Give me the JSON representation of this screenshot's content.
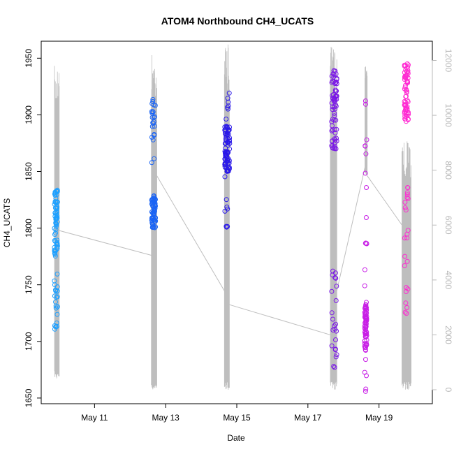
{
  "chart_data": {
    "type": "scatter",
    "title": "ATOM4 Northbound CH4_UCATS",
    "xlabel": "Date",
    "ylabel": "CH4_UCATS",
    "xlim": [
      "2018-05-09T12:00",
      "2018-05-20T12:00"
    ],
    "ylim": [
      1645,
      1965
    ],
    "y_ticks": [
      1650,
      1700,
      1750,
      1800,
      1850,
      1900,
      1950
    ],
    "x_ticks": [
      {
        "value": "2018-05-11",
        "label": "May 11"
      },
      {
        "value": "2018-05-13",
        "label": "May 13"
      },
      {
        "value": "2018-05-15",
        "label": "May 15"
      },
      {
        "value": "2018-05-17",
        "label": "May 17"
      },
      {
        "value": "2018-05-19",
        "label": "May 19"
      }
    ],
    "y2lim": [
      0,
      12700
    ],
    "y2_ticks": [
      0,
      2000,
      4000,
      6000,
      8000,
      10000,
      12000
    ],
    "grid": false,
    "legend": "none",
    "colors": {
      "altitude_line": "#bebebe",
      "point_gradient": [
        "#1ea0ff",
        "#0a3cf0",
        "#6a1ae8",
        "#c81ee6",
        "#ff3cc8"
      ],
      "axis": "#000000",
      "right_axis": "#b8b8b8"
    },
    "point_groups": [
      {
        "t_center": "2018-05-09T22:00",
        "t_spread_hours": 2.2,
        "color": "#1ea0ff",
        "core": [
          1775,
          1835
        ],
        "tail": [
          1710,
          1760
        ]
      },
      {
        "t_center": "2018-05-12T15:50",
        "t_spread_hours": 2.6,
        "color": "#1a64f5",
        "core": [
          1800,
          1830
        ],
        "tail": [
          1850,
          1920
        ]
      },
      {
        "t_center": "2018-05-14T17:30",
        "t_spread_hours": 3.4,
        "color": "#2a18e8",
        "core": [
          1850,
          1890
        ],
        "tail": [
          1800,
          1925
        ]
      },
      {
        "t_center": "2018-05-17T17:50",
        "t_spread_hours": 3.6,
        "color": "#7a18e6",
        "core": [
          1870,
          1940
        ],
        "tail": [
          1675,
          1775
        ]
      },
      {
        "t_center": "2018-05-18T15:00",
        "t_spread_hours": 1.4,
        "color": "#c81ee6",
        "core": [
          1690,
          1735
        ],
        "tail": [
          1655,
          1920
        ]
      },
      {
        "t_center": "2018-05-19T18:30",
        "t_spread_hours": 2.6,
        "color": "#ff2ad2",
        "core": [
          1890,
          1945
        ],
        "tail": [
          1720,
          1840
        ]
      }
    ],
    "altitude_series": {
      "name": "altitude",
      "segments": [
        {
          "t": [
            "2018-05-09T21:00",
            "2018-05-10T00:10"
          ],
          "max": 11800,
          "min": 400
        },
        {
          "t": [
            "2018-05-12T14:20",
            "2018-05-12T18:00"
          ],
          "max": 12300,
          "min": 0
        },
        {
          "t": [
            "2018-05-14T15:40",
            "2018-05-14T19:00"
          ],
          "max": 12600,
          "min": 0
        },
        {
          "t": [
            "2018-05-17T15:10",
            "2018-05-17T19:30"
          ],
          "max": 12500,
          "min": 0
        },
        {
          "t": [
            "2018-05-18T14:30",
            "2018-05-18T16:00"
          ],
          "max": 11900,
          "min": 7800
        },
        {
          "t": [
            "2018-05-19T15:30",
            "2018-05-19T21:40"
          ],
          "max": 9100,
          "min": 0
        }
      ],
      "transits": [
        {
          "from": [
            "2018-05-10T00:10",
            5800
          ],
          "to": [
            "2018-05-12T14:20",
            4900
          ]
        },
        {
          "from": [
            "2018-05-12T18:00",
            7800
          ],
          "to": [
            "2018-05-14T15:40",
            3600
          ]
        },
        {
          "from": [
            "2018-05-14T19:00",
            3100
          ],
          "to": [
            "2018-05-17T15:10",
            2000
          ]
        },
        {
          "from": [
            "2018-05-17T19:30",
            3600
          ],
          "to": [
            "2018-05-18T14:30",
            8100
          ]
        },
        {
          "from": [
            "2018-05-18T16:00",
            7800
          ],
          "to": [
            "2018-05-19T15:30",
            6000
          ]
        }
      ]
    }
  }
}
